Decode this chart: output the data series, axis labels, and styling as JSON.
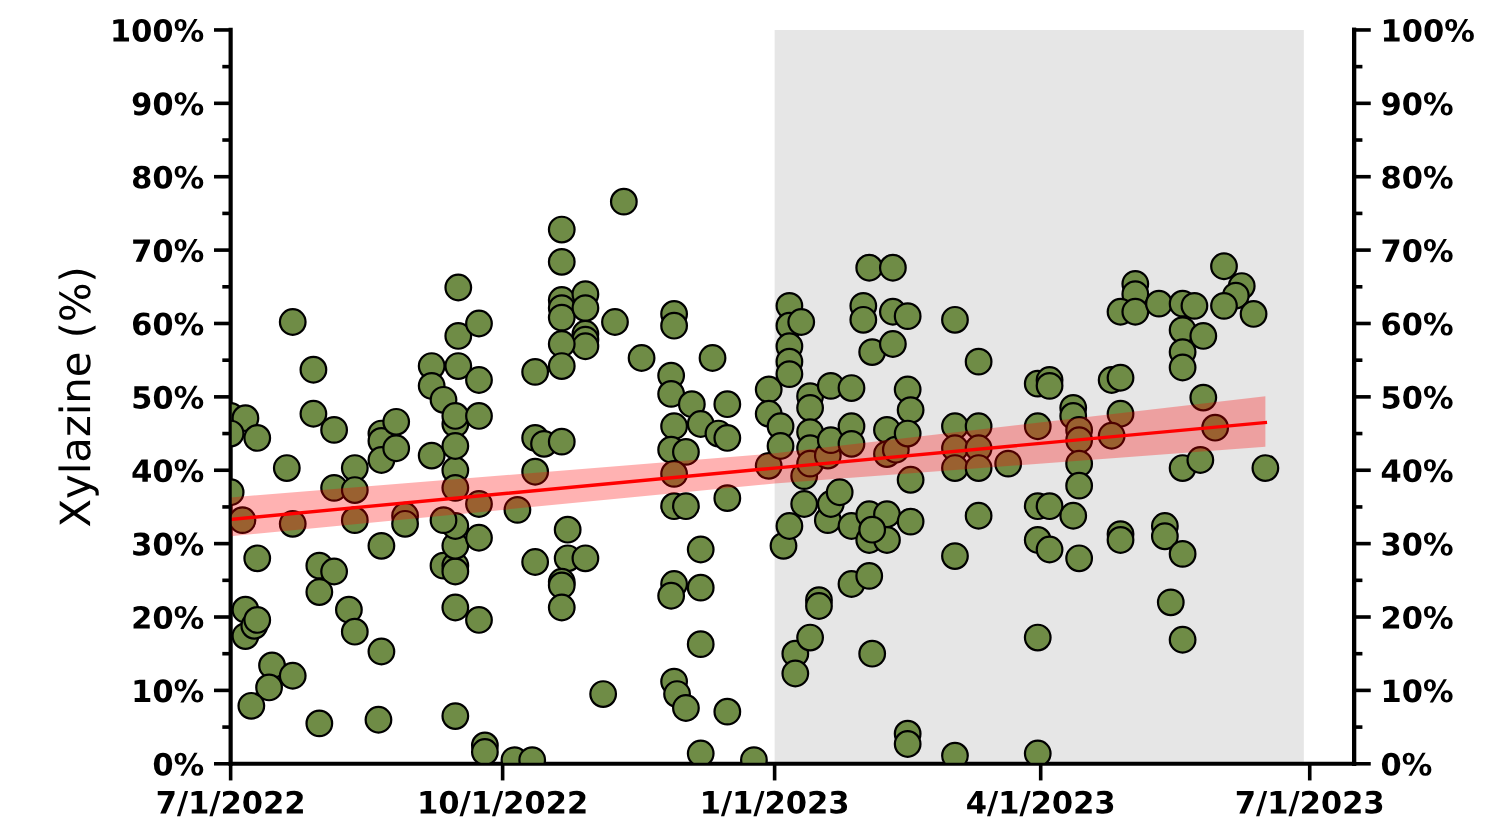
{
  "chart_data": {
    "type": "scatter",
    "ylabel": "Xylazine (%)",
    "xlim": [
      "2022-07-01",
      "2023-07-16"
    ],
    "xticks": [
      {
        "value": "2022-07-01",
        "label": "7/1/2022"
      },
      {
        "value": "2022-10-01",
        "label": "10/1/2022"
      },
      {
        "value": "2023-01-01",
        "label": "1/1/2023"
      },
      {
        "value": "2023-04-01",
        "label": "4/1/2023"
      },
      {
        "value": "2023-07-01",
        "label": "7/1/2023"
      }
    ],
    "ylim": [
      0,
      100
    ],
    "yticks": [
      {
        "value": 0,
        "label": "0%"
      },
      {
        "value": 10,
        "label": "10%"
      },
      {
        "value": 20,
        "label": "20%"
      },
      {
        "value": 30,
        "label": "30%"
      },
      {
        "value": 40,
        "label": "40%"
      },
      {
        "value": 50,
        "label": "50%"
      },
      {
        "value": 60,
        "label": "60%"
      },
      {
        "value": 70,
        "label": "70%"
      },
      {
        "value": 80,
        "label": "80%"
      },
      {
        "value": 90,
        "label": "90%"
      },
      {
        "value": 100,
        "label": "100%"
      }
    ],
    "y2lim": [
      0,
      100
    ],
    "y2ticks": [
      {
        "value": 0,
        "label": "0%"
      },
      {
        "value": 10,
        "label": "10%"
      },
      {
        "value": 20,
        "label": "20%"
      },
      {
        "value": 30,
        "label": "30%"
      },
      {
        "value": 40,
        "label": "40%"
      },
      {
        "value": 50,
        "label": "50%"
      },
      {
        "value": 60,
        "label": "60%"
      },
      {
        "value": 70,
        "label": "70%"
      },
      {
        "value": 80,
        "label": "80%"
      },
      {
        "value": 90,
        "label": "90%"
      },
      {
        "value": 100,
        "label": "100%"
      }
    ],
    "grid": false,
    "legend": false,
    "bands": [
      {
        "axis": "x",
        "from": "2023-01-01",
        "to": "2023-06-29",
        "color": "#e6e6e6"
      }
    ],
    "series": [
      {
        "color": "#6f8c46",
        "marker": "circle",
        "x": [
          "2022-07-01",
          "2022-07-06",
          "2022-07-10",
          "2022-07-01",
          "2022-07-01",
          "2022-07-05",
          "2022-07-10",
          "2022-07-06",
          "2022-07-06",
          "2022-07-09",
          "2022-07-10",
          "2022-07-15",
          "2022-07-14",
          "2022-07-08",
          "2022-07-22",
          "2022-07-22",
          "2022-07-20",
          "2022-07-22",
          "2022-07-29",
          "2022-07-29",
          "2022-08-05",
          "2022-08-05",
          "2022-07-31",
          "2022-08-05",
          "2022-07-31",
          "2022-07-31",
          "2022-08-10",
          "2022-08-12",
          "2022-08-12",
          "2022-08-12",
          "2022-08-12",
          "2022-08-21",
          "2022-08-21",
          "2022-08-21",
          "2022-08-26",
          "2022-08-26",
          "2022-08-21",
          "2022-08-21",
          "2022-08-20",
          "2022-08-29",
          "2022-08-29",
          "2022-09-07",
          "2022-09-07",
          "2022-09-11",
          "2022-09-15",
          "2022-09-15",
          "2022-09-16",
          "2022-09-16",
          "2022-09-16",
          "2022-09-07",
          "2022-09-11",
          "2022-09-15",
          "2022-09-15",
          "2022-09-15",
          "2022-09-15",
          "2022-09-15",
          "2022-09-15",
          "2022-09-15",
          "2022-09-11",
          "2022-09-15",
          "2022-09-15",
          "2022-09-23",
          "2022-09-23",
          "2022-09-23",
          "2022-09-23",
          "2022-09-23",
          "2022-09-23",
          "2022-09-25",
          "2022-09-25",
          "2022-10-06",
          "2022-10-05",
          "2022-10-11",
          "2022-10-12",
          "2022-10-12",
          "2022-10-15",
          "2022-10-21",
          "2022-10-12",
          "2022-10-12",
          "2022-10-21",
          "2022-10-21",
          "2022-10-21",
          "2022-10-21",
          "2022-10-21",
          "2022-10-29",
          "2022-10-29",
          "2022-10-29",
          "2022-10-29",
          "2022-10-29",
          "2022-10-21",
          "2022-10-21",
          "2022-11-08",
          "2022-10-23",
          "2022-10-23",
          "2022-10-29",
          "2022-10-21",
          "2022-10-21",
          "2022-10-21",
          "2022-11-11",
          "2022-11-04",
          "2022-11-17",
          "2022-11-28",
          "2022-11-28",
          "2022-11-27",
          "2022-11-27",
          "2022-11-28",
          "2022-11-27",
          "2022-12-02",
          "2022-11-28",
          "2022-11-28",
          "2022-12-02",
          "2022-12-04",
          "2022-12-07",
          "2022-12-11",
          "2022-12-16",
          "2022-12-13",
          "2022-12-16",
          "2022-12-16",
          "2022-12-07",
          "2022-12-07",
          "2022-12-07",
          "2022-11-28",
          "2022-11-27",
          "2022-11-28",
          "2022-11-29",
          "2022-12-02",
          "2022-12-16",
          "2022-12-07",
          "2022-12-25",
          "2022-12-30",
          "2022-12-30",
          "2022-12-30",
          "2023-01-03",
          "2023-01-03",
          "2023-01-06",
          "2023-01-06",
          "2023-01-10",
          "2023-01-06",
          "2023-01-06",
          "2023-01-06",
          "2023-01-04",
          "2023-01-06",
          "2023-01-08",
          "2023-01-08",
          "2023-01-13",
          "2023-01-11",
          "2023-01-11",
          "2023-01-19",
          "2023-01-20",
          "2023-01-23",
          "2023-01-13",
          "2023-01-13",
          "2023-01-13",
          "2023-01-13",
          "2023-01-20",
          "2023-01-27",
          "2023-01-13",
          "2023-01-19",
          "2023-01-20",
          "2023-01-16",
          "2023-01-16",
          "2023-01-27",
          "2023-01-27",
          "2023-01-27",
          "2023-02-02",
          "2023-01-27",
          "2023-02-02",
          "2023-02-08",
          "2023-02-02",
          "2023-02-08",
          "2023-02-03",
          "2023-02-02",
          "2023-02-10",
          "2023-01-31",
          "2023-01-31",
          "2023-02-10",
          "2023-02-15",
          "2023-02-03",
          "2023-02-10",
          "2023-02-03",
          "2023-02-08",
          "2023-02-08",
          "2023-02-11",
          "2023-02-15",
          "2023-02-16",
          "2023-02-15",
          "2023-02-16",
          "2023-02-16",
          "2023-02-15",
          "2023-02-15",
          "2023-03-03",
          "2023-03-03",
          "2023-03-03",
          "2023-03-03",
          "2023-03-03",
          "2023-03-03",
          "2023-03-11",
          "2023-03-11",
          "2023-03-11",
          "2023-03-11",
          "2023-03-11",
          "2023-03-21",
          "2023-03-31",
          "2023-03-31",
          "2023-03-31",
          "2023-03-31",
          "2023-03-31",
          "2023-03-31",
          "2023-04-04",
          "2023-04-04",
          "2023-04-04",
          "2023-04-04",
          "2023-04-12",
          "2023-04-12",
          "2023-04-12",
          "2023-04-14",
          "2023-04-14",
          "2023-04-14",
          "2023-04-14",
          "2023-04-14",
          "2023-04-25",
          "2023-04-28",
          "2023-04-28",
          "2023-04-25",
          "2023-04-28",
          "2023-04-28",
          "2023-05-03",
          "2023-05-03",
          "2023-04-28",
          "2023-05-03",
          "2023-05-11",
          "2023-05-19",
          "2023-05-23",
          "2023-05-19",
          "2023-05-19",
          "2023-05-19",
          "2023-05-26",
          "2023-05-13",
          "2023-05-13",
          "2023-05-19",
          "2023-05-15",
          "2023-05-19",
          "2023-05-19",
          "2023-05-25",
          "2023-05-26",
          "2023-05-30",
          "2023-06-02",
          "2023-06-08",
          "2023-06-06",
          "2023-06-02",
          "2023-06-12",
          "2023-06-16"
        ],
        "values": [
          47.4,
          47.1,
          44.4,
          45,
          37,
          33.2,
          28,
          21,
          17.4,
          18.8,
          19.6,
          13.4,
          10.4,
          7.9,
          12,
          60.2,
          40.3,
          32.7,
          53.7,
          47.7,
          45.5,
          37.6,
          27,
          26.2,
          23.4,
          5.5,
          21,
          18,
          40.3,
          37.3,
          33.2,
          45,
          44,
          41.4,
          46.6,
          43,
          29.7,
          15.3,
          6,
          33.8,
          32.7,
          54.2,
          51.5,
          49.6,
          46.3,
          47.4,
          64.9,
          58.3,
          54.2,
          42,
          27,
          27,
          26.2,
          29.7,
          32.4,
          40,
          43.3,
          37.6,
          33.2,
          21.3,
          6.5,
          60,
          52.3,
          47.4,
          35.4,
          30.8,
          19.6,
          2.5,
          1.6,
          34.6,
          0.5,
          0.5,
          53.4,
          44.4,
          43.6,
          43.9,
          39.8,
          27.5,
          72.8,
          68.4,
          63.2,
          62.1,
          60.8,
          64,
          62.1,
          58.6,
          57.8,
          56.9,
          57.2,
          54.2,
          60.2,
          31.9,
          28,
          28,
          24.8,
          24.3,
          21.3,
          76.6,
          9.5,
          55.3,
          61.3,
          59.7,
          52.9,
          50.4,
          46,
          42.8,
          42.5,
          39.5,
          35.1,
          35.1,
          49,
          46.3,
          55.3,
          49,
          45,
          44.4,
          36.2,
          29.2,
          24,
          16.3,
          24.5,
          22.9,
          11.2,
          9.5,
          7.6,
          7.1,
          1.4,
          0.5,
          51,
          47.7,
          40.6,
          46,
          43.3,
          62.4,
          59.7,
          60.2,
          56.9,
          54.8,
          53.1,
          29.7,
          32.4,
          15,
          12.3,
          17.2,
          39.2,
          35.4,
          33.2,
          35.4,
          37,
          50.1,
          48.5,
          45.2,
          43,
          51.5,
          51.2,
          40.9,
          42,
          44.1,
          22.3,
          21.5,
          46,
          43.6,
          24.5,
          25.6,
          32.4,
          34,
          34,
          30.5,
          30.5,
          31.9,
          67.6,
          67.6,
          62.4,
          60.5,
          61.6,
          61,
          56.1,
          57.2,
          15,
          45.5,
          42.2,
          42.8,
          51,
          48.2,
          45,
          38.7,
          33,
          4.1,
          2.7,
          60.5,
          46,
          43,
          40.3,
          28.3,
          1.1,
          54.8,
          46,
          43,
          40.3,
          33.8,
          40.9,
          51.8,
          46,
          35.1,
          30.5,
          17.2,
          1.4,
          52.3,
          51.5,
          35.1,
          29.2,
          33.8,
          48.5,
          47.4,
          45.5,
          44.1,
          40.9,
          37.9,
          28,
          52.3,
          52.6,
          47.7,
          44.7,
          31.3,
          30.5,
          65.4,
          64,
          61.6,
          61.6,
          62.7,
          62.7,
          62.4,
          59.1,
          56.1,
          54,
          58.3,
          32.4,
          31,
          28.6,
          22,
          16.9,
          40.3,
          41.4,
          49.9,
          45.8,
          67.8,
          65.1,
          63.8,
          62.4,
          61.3,
          40.3
        ]
      },
      {
        "type": "line",
        "color": "#ff0000",
        "marker": "none",
        "line_style": "solid",
        "x": [
          "2022-07-01",
          "2023-01-01",
          "2023-06-16"
        ],
        "values": [
          33.3,
          40.3,
          46.5
        ],
        "lower": [
          31,
          38.2,
          43.2
        ],
        "upper": [
          36.3,
          42.3,
          50.1
        ]
      }
    ]
  }
}
